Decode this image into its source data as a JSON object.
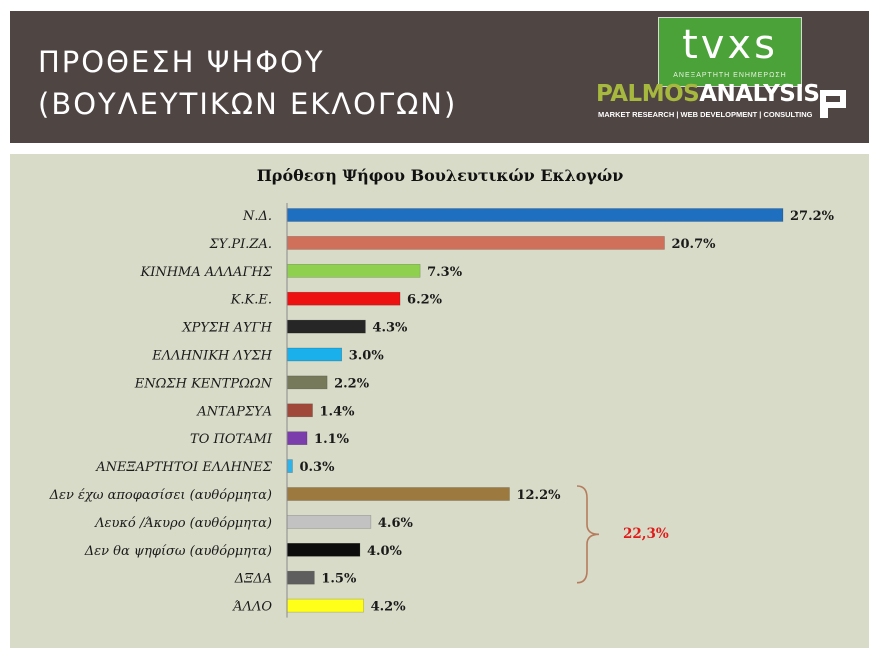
{
  "header": {
    "title_line1": "ΠΡΟΘΕΣΗ ΨΗΦΟΥ",
    "title_line2": "(ΒΟΥΛΕΥΤΙΚΩΝ ΕΚΛΟΓΩΝ)",
    "tvxs_logo": "tvxs",
    "tvxs_tagline": "ΑΝΕΞΑΡΤΗΤΗ ΕΝΗΜΕΡΩΣΗ",
    "palmos_part1": "PALMOS",
    "palmos_part2": "ANALYSIS",
    "palmos_tagline": "MARKET RESEARCH | WEB DEVELOPMENT | CONSULTING"
  },
  "chart_data": {
    "type": "bar",
    "orientation": "horizontal",
    "title": "Πρόθεση Ψήφου Βουλευτικών Εκλογών",
    "categories": [
      "Ν.Δ.",
      "ΣΥ.ΡΙ.ΖΑ.",
      "ΚΙΝΗΜΑ ΑΛΛΑΓΗΣ",
      "Κ.Κ.Ε.",
      "ΧΡΥΣΗ ΑΥΓΗ",
      "ΕΛΛΗΝΙΚΗ ΛΥΣΗ",
      "ΕΝΩΣΗ ΚΕΝΤΡΩΩΝ",
      "ΑΝΤΑΡΣΥΑ",
      "ΤΟ ΠΟΤΑΜΙ",
      "ΑΝΕΞΑΡΤΗΤΟΙ ΕΛΛΗΝΕΣ",
      "Δεν έχω αποφασίσει (αυθόρμητα)",
      "Λευκό /Άκυρο (αυθόρμητα)",
      "Δεν θα ψηφίσω (αυθόρμητα)",
      "ΔΞΔΑ",
      "ΆΛΛΟ"
    ],
    "values": [
      27.2,
      20.7,
      7.3,
      6.2,
      4.3,
      3.0,
      2.2,
      1.4,
      1.1,
      0.3,
      12.2,
      4.6,
      4.0,
      1.5,
      4.2
    ],
    "value_labels": [
      "27.2%",
      "20.7%",
      "7.3%",
      "6.2%",
      "4.3%",
      "3.0%",
      "2.2%",
      "1.4%",
      "1.1%",
      "0.3%",
      "12.2%",
      "4.6%",
      "4.0%",
      "1.5%",
      "4.2%"
    ],
    "colors": [
      "#1f6fc1",
      "#d0705b",
      "#8fd14f",
      "#ee1111",
      "#262626",
      "#19b0ec",
      "#76795a",
      "#a0493a",
      "#7b3dac",
      "#2fb2e8",
      "#9c7a3f",
      "#c2c2c2",
      "#0d0d0d",
      "#5e5e5e",
      "#ffff1a"
    ],
    "xlim": [
      0,
      30
    ],
    "grid": false,
    "legend": false,
    "bracket": {
      "from_category": "Δεν έχω αποφασίσει (αυθόρμητα)",
      "to_category": "ΔΞΔΑ",
      "label": "22,3%",
      "color": "#e01b1b"
    }
  }
}
